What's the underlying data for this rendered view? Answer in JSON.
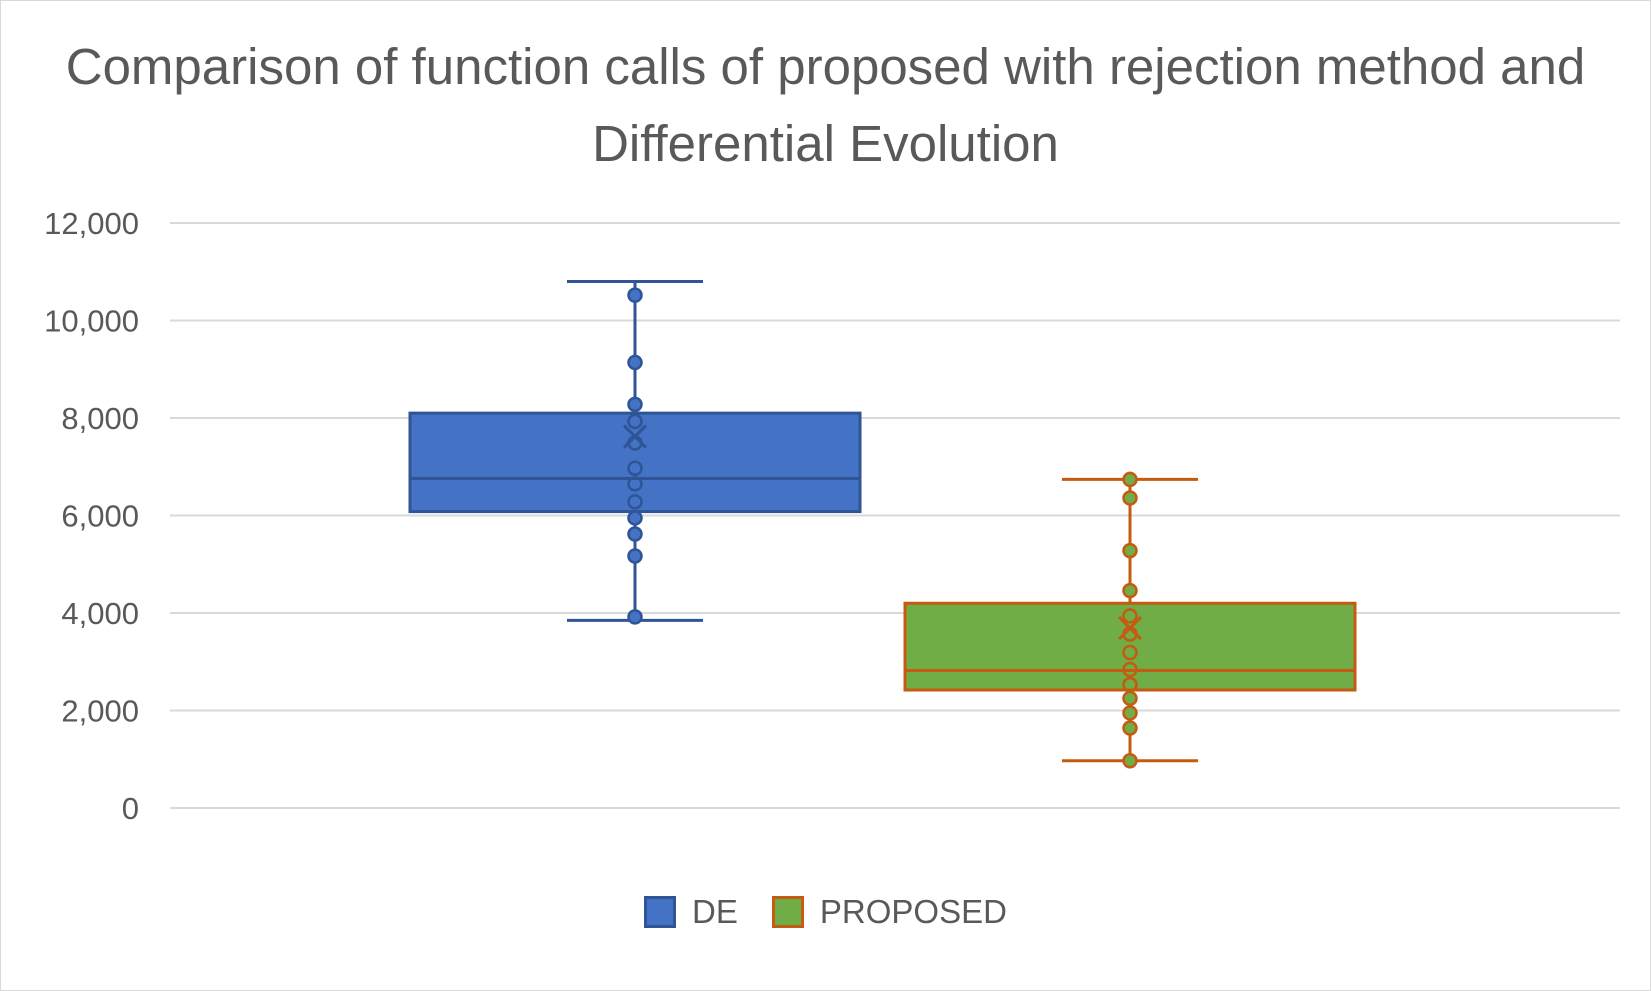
{
  "chart_data": {
    "type": "box",
    "title": "Comparison of function calls  of proposed with rejection method and Differential Evolution",
    "xlabel": "",
    "ylabel": "",
    "ylim": [
      0,
      12000
    ],
    "yticks": [
      0,
      2000,
      4000,
      6000,
      8000,
      10000,
      12000
    ],
    "ytick_labels": [
      "0",
      "2,000",
      "4,000",
      "6,000",
      "8,000",
      "10,000",
      "12,000"
    ],
    "grid": true,
    "legend_position": "bottom",
    "series": [
      {
        "name": "DE",
        "fill": "#4472c4",
        "stroke": "#2f5597",
        "min": 3850,
        "q1": 6080,
        "median": 6760,
        "q3": 8100,
        "max": 10800,
        "mean": 7620,
        "points": [
          3920,
          5170,
          5620,
          5950,
          6280,
          6650,
          6970,
          7490,
          7930,
          8280,
          9140,
          10520
        ]
      },
      {
        "name": "PROPOSED",
        "fill": "#70ad47",
        "stroke": "#c55a11",
        "min": 970,
        "q1": 2420,
        "median": 2820,
        "q3": 4200,
        "max": 6740,
        "mean": 3690,
        "points": [
          970,
          1640,
          1950,
          2250,
          2530,
          2840,
          3190,
          3570,
          3940,
          4460,
          5280,
          6360,
          6740
        ]
      }
    ]
  }
}
